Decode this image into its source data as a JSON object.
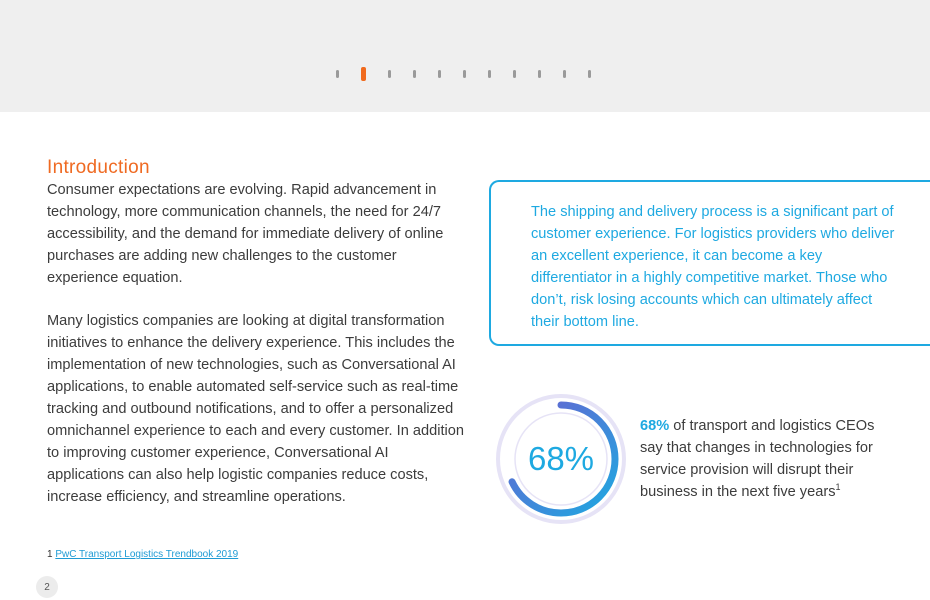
{
  "pager": {
    "count": 11,
    "active_index": 1
  },
  "introduction": {
    "heading": "Introduction",
    "paragraphs": [
      "Consumer expectations are evolving. Rapid advancement in technology, more communication channels, the need for 24/7 accessibility, and the demand for immediate delivery of online purchases are adding new challenges to the customer experience equation.",
      "Many logistics companies are looking at digital transformation initiatives to enhance the delivery experience. This includes the implementation of new technologies, such as Conversational AI applications, to enable automated self-service such as real-time tracking and outbound notifications, and to offer a personalized omnichannel experience to each and every customer. In addition to improving customer experience, Conversational AI applications can also help logistic companies reduce costs, increase efficiency, and streamline operations."
    ]
  },
  "callout": {
    "text": "The shipping and delivery process is a significant part of customer experience. For logistics providers who deliver an excellent experience, it can become a key differentiator in a highly competitive market. Those who don’t, risk losing accounts which can ultimately affect their bottom line."
  },
  "stat": {
    "value_label": "68%",
    "fraction": 0.68,
    "highlight": "68%",
    "text": " of transport and logistics CEOs say that changes in technologies for service provision will disrupt their business in the next five years",
    "footnote_marker": "1"
  },
  "footnote": {
    "marker": "1",
    "link_text": "PwC Transport Logistics Trendbook 2019"
  },
  "page_number": "2",
  "colors": {
    "accent_orange": "#ef6a22",
    "accent_blue": "#1ea9e1",
    "ring_purple": "#6b5fd0",
    "ring_track": "#e6e3f6"
  }
}
